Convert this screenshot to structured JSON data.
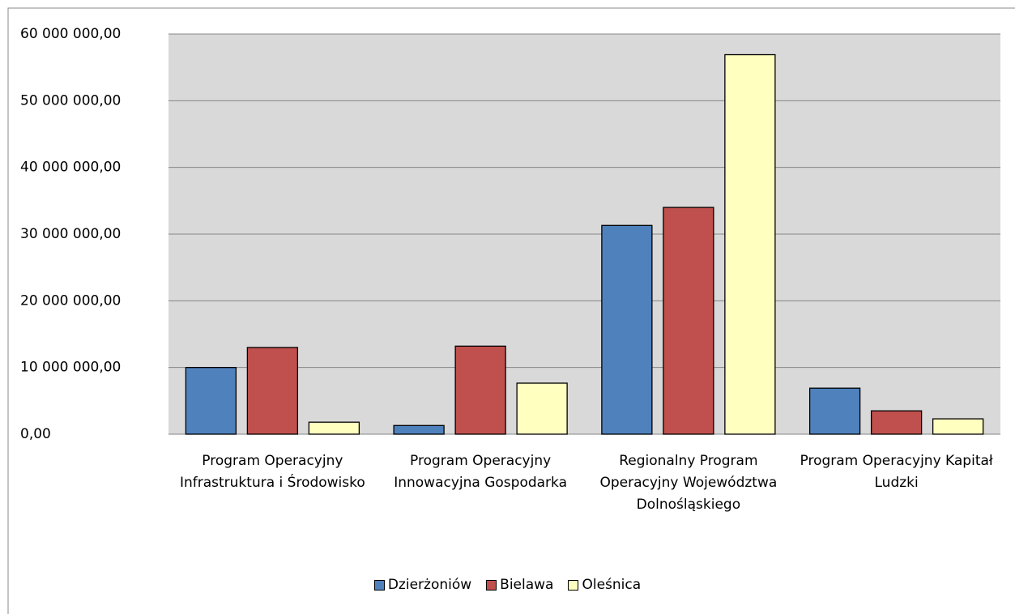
{
  "chart_data": {
    "type": "bar",
    "categories": [
      "Program Operacyjny Infrastruktura i Środowisko",
      "Program Operacyjny Innowacyjna Gospodarka",
      "Regionalny Program Operacyjny Województwa Dolnośląskiego",
      "Program Operacyjny Kapitał Ludzki"
    ],
    "series": [
      {
        "name": "Dzierżoniów",
        "color": "#4f81bd",
        "values": [
          10000000,
          1300000,
          31300000,
          6900000
        ]
      },
      {
        "name": "Bielawa",
        "color": "#c0504d",
        "values": [
          13000000,
          13200000,
          34000000,
          3500000
        ]
      },
      {
        "name": "Oleśnica",
        "color": "#ffffc0",
        "values": [
          1800000,
          7650000,
          56900000,
          2300000
        ]
      }
    ],
    "ylim": [
      0,
      60000000
    ],
    "yticks": [
      {
        "value": 0,
        "label": "0,00"
      },
      {
        "value": 10000000,
        "label": "10 000 000,00"
      },
      {
        "value": 20000000,
        "label": "20 000 000,00"
      },
      {
        "value": 30000000,
        "label": "30 000 000,00"
      },
      {
        "value": 40000000,
        "label": "40 000 000,00"
      },
      {
        "value": 50000000,
        "label": "50 000 000,00"
      },
      {
        "value": 60000000,
        "label": "60 000 000,00"
      }
    ],
    "grid": true,
    "legend": "bottom"
  }
}
